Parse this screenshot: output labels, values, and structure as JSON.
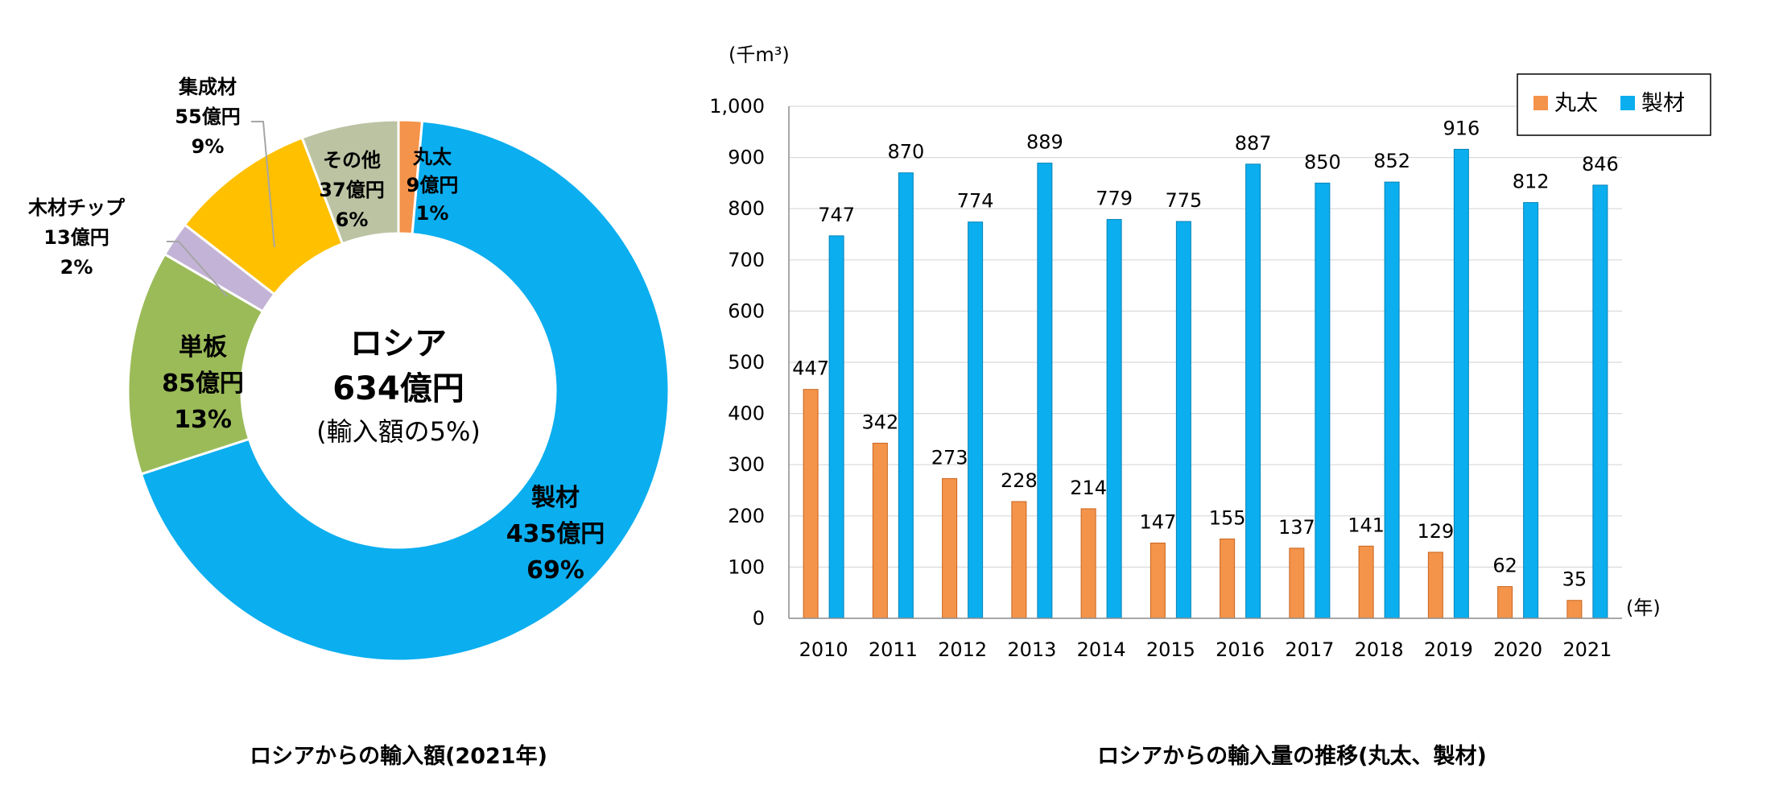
{
  "chart_data": [
    {
      "type": "pie",
      "title": "ロシアからの輸入額(2021年)",
      "center": {
        "line1": "ロシア",
        "line2": "634億円",
        "line3": "(輸入額の5%)"
      },
      "slices": [
        {
          "name": "丸太",
          "value_label": "9億円",
          "percent_label": "1%",
          "value": 9,
          "percent": 1.4,
          "color": "#F4934A"
        },
        {
          "name": "製材",
          "value_label": "435億円",
          "percent_label": "69%",
          "value": 435,
          "percent": 68.6,
          "color": "#0BAEEF"
        },
        {
          "name": "単板",
          "value_label": "85億円",
          "percent_label": "13%",
          "value": 85,
          "percent": 13.4,
          "color": "#9BBB59"
        },
        {
          "name": "木材チップ",
          "value_label": "13億円",
          "percent_label": "2%",
          "value": 13,
          "percent": 2.1,
          "color": "#C3B3D6"
        },
        {
          "name": "集成材",
          "value_label": "55億円",
          "percent_label": "9%",
          "value": 55,
          "percent": 8.7,
          "color": "#FFC000"
        },
        {
          "name": "その他",
          "value_label": "37億円",
          "percent_label": "6%",
          "value": 37,
          "percent": 5.8,
          "color": "#BCC3A3"
        }
      ]
    },
    {
      "type": "bar",
      "title": "ロシアからの輸入量の推移(丸太、製材)",
      "unit_label": "(千m³)",
      "xlabel": "(年)",
      "ylabel": "",
      "ylim": [
        0,
        1000
      ],
      "yticks": [
        "0",
        "100",
        "200",
        "300",
        "400",
        "500",
        "600",
        "700",
        "800",
        "900",
        "1,000"
      ],
      "categories": [
        "2010",
        "2011",
        "2012",
        "2013",
        "2014",
        "2015",
        "2016",
        "2017",
        "2018",
        "2019",
        "2020",
        "2021"
      ],
      "series": [
        {
          "name": "丸太",
          "color": "#F4934A",
          "values": [
            447,
            342,
            273,
            228,
            214,
            147,
            155,
            137,
            141,
            129,
            62,
            35
          ]
        },
        {
          "name": "製材",
          "color": "#0BAEEF",
          "values": [
            747,
            870,
            774,
            889,
            779,
            775,
            887,
            850,
            852,
            916,
            812,
            846
          ]
        }
      ],
      "grid": true,
      "legend_position": "top-right"
    }
  ]
}
